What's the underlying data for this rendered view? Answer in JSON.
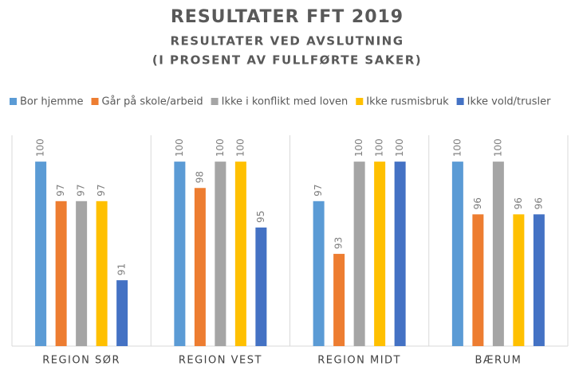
{
  "chart_data": {
    "type": "bar",
    "title": "RESULTATER FFT 2019",
    "subtitle": [
      "RESULTATER VED AVSLUTNING",
      "(I PROSENT AV FULLFØRTE SAKER)"
    ],
    "categories": [
      "REGION SØR",
      "REGION VEST",
      "REGION MIDT",
      "BÆRUM"
    ],
    "series": [
      {
        "name": "Bor hjemme",
        "color": "#5b9bd5",
        "values": [
          100,
          100,
          97,
          100
        ]
      },
      {
        "name": "Går på skole/arbeid",
        "color": "#ed7d31",
        "values": [
          97,
          98,
          93,
          96
        ]
      },
      {
        "name": "Ikke i konflikt med loven",
        "color": "#a5a5a5",
        "values": [
          97,
          100,
          100,
          100
        ]
      },
      {
        "name": "Ikke rusmisbruk",
        "color": "#ffc000",
        "values": [
          97,
          100,
          100,
          96
        ]
      },
      {
        "name": "Ikke vold/trusler",
        "color": "#4472c4",
        "values": [
          91,
          95,
          100,
          96
        ]
      }
    ],
    "ylim": [
      86,
      102
    ],
    "legend": "top"
  }
}
